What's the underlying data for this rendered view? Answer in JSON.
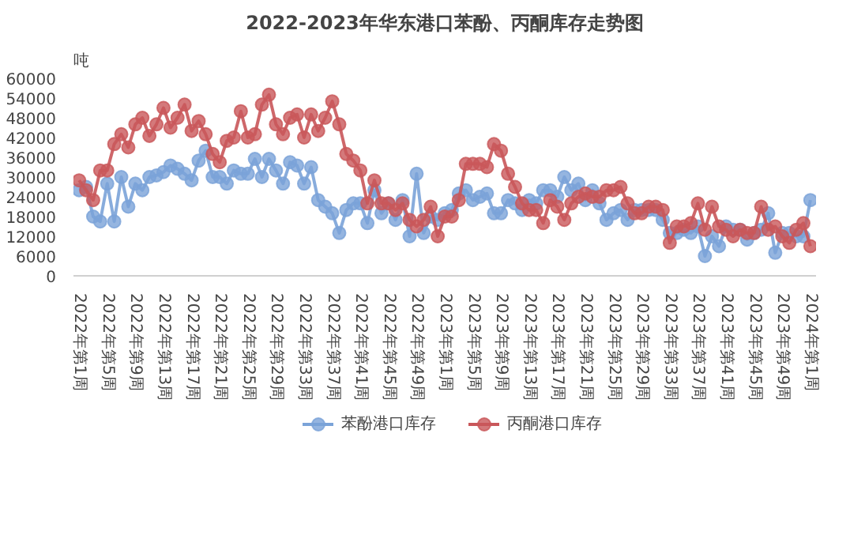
{
  "chart_data": {
    "type": "line",
    "title": "2022-2023年华东港口苯酚、丙酮库存走势图",
    "ylabel": "吨",
    "categories": [
      "2022年第1周",
      null,
      null,
      null,
      "2022年第5周",
      null,
      null,
      null,
      "2022年第9周",
      null,
      null,
      null,
      "2022年第13周",
      null,
      null,
      null,
      "2022年第17周",
      null,
      null,
      null,
      "2022年第21周",
      null,
      null,
      null,
      "2022年第25周",
      null,
      null,
      null,
      "2022年第29周",
      null,
      null,
      null,
      "2022年第33周",
      null,
      null,
      null,
      "2022年第37周",
      null,
      null,
      null,
      "2022年第41周",
      null,
      null,
      null,
      "2022年第45周",
      null,
      null,
      null,
      "2022年第49周",
      null,
      null,
      null,
      "2023年第1周",
      null,
      null,
      null,
      "2023年第5周",
      null,
      null,
      null,
      "2023年第9周",
      null,
      null,
      null,
      "2023年第13周",
      null,
      null,
      null,
      "2023年第17周",
      null,
      null,
      null,
      "2023年第21周",
      null,
      null,
      null,
      "2023年第25周",
      null,
      null,
      null,
      "2023年第29周",
      null,
      null,
      null,
      "2023年第33周",
      null,
      null,
      null,
      "2023年第37周",
      null,
      null,
      null,
      "2023年第41周",
      null,
      null,
      null,
      "2023年第45周",
      null,
      null,
      null,
      "2023年第49周",
      null,
      null,
      null,
      "2024年第1周"
    ],
    "series": [
      {
        "name": "苯酚港口库存",
        "color": "#7ba3d8",
        "values": [
          26000,
          27000,
          18000,
          16500,
          28000,
          16500,
          30000,
          21000,
          28000,
          26000,
          30000,
          30500,
          31500,
          33500,
          32500,
          31000,
          29000,
          35000,
          38000,
          30000,
          30000,
          28000,
          32000,
          31000,
          31000,
          35500,
          30000,
          35500,
          32000,
          28000,
          34500,
          33500,
          28000,
          33000,
          23000,
          21000,
          19000,
          13000,
          20000,
          22000,
          22000,
          16000,
          26000,
          19000,
          22000,
          17000,
          23000,
          12000,
          31000,
          13000,
          18000,
          17000,
          19000,
          20000,
          25000,
          26000,
          23000,
          24000,
          25000,
          19000,
          19000,
          23000,
          22000,
          20000,
          23000,
          22000,
          26000,
          26000,
          24000,
          30000,
          26000,
          28000,
          23000,
          26000,
          22000,
          17000,
          19000,
          20000,
          17000,
          20000,
          20000,
          20000,
          20000,
          17000,
          13000,
          13000,
          14000,
          13000,
          15000,
          6000,
          12000,
          9000,
          15000,
          14000,
          14000,
          11000,
          13000,
          14000,
          19000,
          7000,
          13000,
          13000,
          12000,
          12000,
          23000
        ]
      },
      {
        "name": "丙酮港口库存",
        "color": "#c9575a",
        "values": [
          29000,
          26000,
          23000,
          32000,
          32000,
          40000,
          43000,
          39000,
          46000,
          48000,
          42500,
          46000,
          51000,
          45000,
          48000,
          52000,
          44000,
          47000,
          43000,
          37000,
          34500,
          41000,
          42000,
          50000,
          42000,
          43000,
          52000,
          55000,
          46000,
          43000,
          48000,
          49000,
          42000,
          49000,
          44000,
          48000,
          53000,
          46000,
          37000,
          35000,
          32000,
          22000,
          29000,
          22000,
          22000,
          20000,
          22000,
          17000,
          15000,
          17000,
          21000,
          12000,
          18000,
          18000,
          23000,
          34000,
          34000,
          34000,
          33000,
          40000,
          38000,
          31000,
          27000,
          22000,
          20000,
          20000,
          16000,
          23000,
          21000,
          17000,
          22000,
          24000,
          25000,
          24000,
          24000,
          26000,
          26000,
          27000,
          22000,
          19000,
          19000,
          21000,
          21000,
          20000,
          10000,
          15000,
          15000,
          16000,
          22000,
          14000,
          21000,
          15000,
          14000,
          12000,
          14000,
          13000,
          13000,
          21000,
          14000,
          15000,
          12000,
          10000,
          14000,
          16000,
          9000
        ]
      }
    ],
    "ylim": [
      0,
      60000
    ],
    "yticks": [
      0,
      6000,
      12000,
      18000,
      24000,
      30000,
      36000,
      42000,
      48000,
      54000,
      60000
    ],
    "grid": false,
    "legend": "bottom",
    "marker": "circle",
    "line_style": "solid"
  }
}
